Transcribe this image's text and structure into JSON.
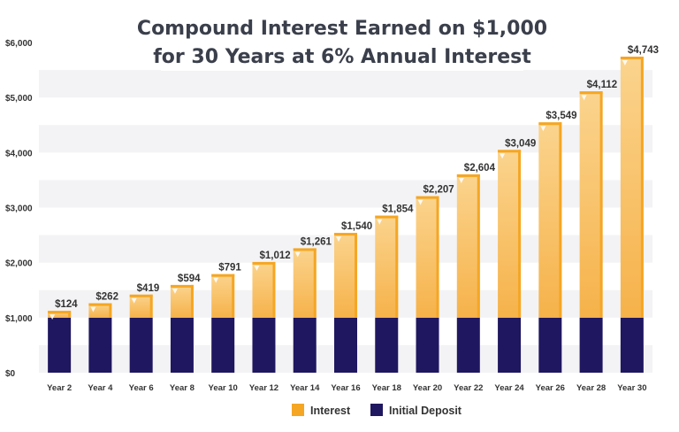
{
  "chart_data": {
    "type": "bar",
    "stacked": true,
    "title": [
      "Compound Interest Earned on $1,000",
      "for 30 Years at 6% Annual Interest"
    ],
    "categories": [
      "Year 2",
      "Year 4",
      "Year 6",
      "Year 8",
      "Year 10",
      "Year 12",
      "Year 14",
      "Year 16",
      "Year 18",
      "Year 20",
      "Year 22",
      "Year 24",
      "Year 26",
      "Year 28",
      "Year 30"
    ],
    "series": [
      {
        "name": "Initial Deposit",
        "color": "#1f1760",
        "values": [
          1000,
          1000,
          1000,
          1000,
          1000,
          1000,
          1000,
          1000,
          1000,
          1000,
          1000,
          1000,
          1000,
          1000,
          1000
        ]
      },
      {
        "name": "Interest",
        "color": "#f5a623",
        "values": [
          124,
          262,
          419,
          594,
          791,
          1012,
          1261,
          1540,
          1854,
          2207,
          2604,
          3049,
          3549,
          4112,
          4743
        ]
      }
    ],
    "data_labels": [
      "$124",
      "$262",
      "$419",
      "$594",
      "$791",
      "$1,012",
      "$1,261",
      "$1,540",
      "$1,854",
      "$2,207",
      "$2,604",
      "$3,049",
      "$3,549",
      "$4,112",
      "$4,743"
    ],
    "ytick_labels": [
      "$0",
      "$1,000",
      "$2,000",
      "$3,000",
      "$4,000",
      "$5,000",
      "$6,000"
    ],
    "ytick_values": [
      0,
      1000,
      2000,
      3000,
      4000,
      5000,
      6000
    ],
    "ylim": [
      0,
      6000
    ],
    "xlabel": "",
    "ylabel": "",
    "legend": [
      "Interest",
      "Initial Deposit"
    ],
    "legend_position": "bottom-center"
  }
}
